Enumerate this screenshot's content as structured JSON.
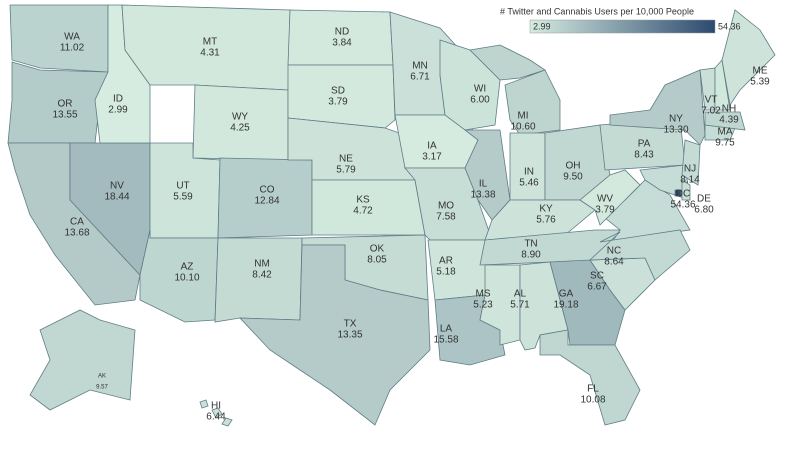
{
  "chart_data": {
    "type": "choropleth",
    "legend_title": "# Twitter and Cannabis Users per 10,000 People",
    "colorbar": {
      "lim": [
        2.99,
        54.36
      ],
      "colors": [
        "#d6ece0",
        "#2c4a70"
      ]
    },
    "categories": [
      "WA",
      "OR",
      "CA",
      "NV",
      "ID",
      "MT",
      "WY",
      "UT",
      "AZ",
      "CO",
      "NM",
      "ND",
      "SD",
      "NE",
      "KS",
      "OK",
      "TX",
      "MN",
      "IA",
      "MO",
      "AR",
      "LA",
      "WI",
      "IL",
      "MI",
      "IN",
      "OH",
      "KY",
      "TN",
      "MS",
      "AL",
      "GA",
      "FL",
      "SC",
      "NC",
      "WV",
      "PA",
      "NY",
      "NJ",
      "DE",
      "DC",
      "VT",
      "NH",
      "MA",
      "ME",
      "AK",
      "HI"
    ],
    "values": [
      11.02,
      13.55,
      13.68,
      18.44,
      2.99,
      4.31,
      4.25,
      5.59,
      10.1,
      12.84,
      8.42,
      3.84,
      3.79,
      5.79,
      4.72,
      8.05,
      13.35,
      6.71,
      3.17,
      7.58,
      5.18,
      15.58,
      6,
      13.38,
      10.6,
      5.46,
      9.5,
      5.76,
      8.9,
      5.23,
      5.71,
      19.18,
      10.08,
      6.67,
      8.64,
      3.79,
      8.43,
      13.3,
      8.14,
      6.8,
      54.36,
      7.02,
      4.39,
      9.75,
      5.39,
      9.57,
      6.44
    ],
    "value_labels": [
      "11.02",
      "13.55",
      "13.68",
      "18.44",
      "2.99",
      "4.31",
      "4.25",
      "5.59",
      "10.10",
      "12.84",
      "8.42",
      "3.84",
      "3.79",
      "5.79",
      "4.72",
      "8.05",
      "13.35",
      "6.71",
      "3.17",
      "7.58",
      "5.18",
      "15.58",
      "6.00",
      "13.38",
      "10.60",
      "5.46",
      "9.50",
      "5.76",
      "8.90",
      "5.23",
      "5.71",
      "19.18",
      "10.08",
      "6.67",
      "8.64",
      "3.79",
      "8.43",
      "13.30",
      "8.14",
      "6.80",
      "54.36",
      "7.02",
      "4.39",
      "9.75",
      "5.39",
      "9.57",
      "6.44"
    ]
  }
}
